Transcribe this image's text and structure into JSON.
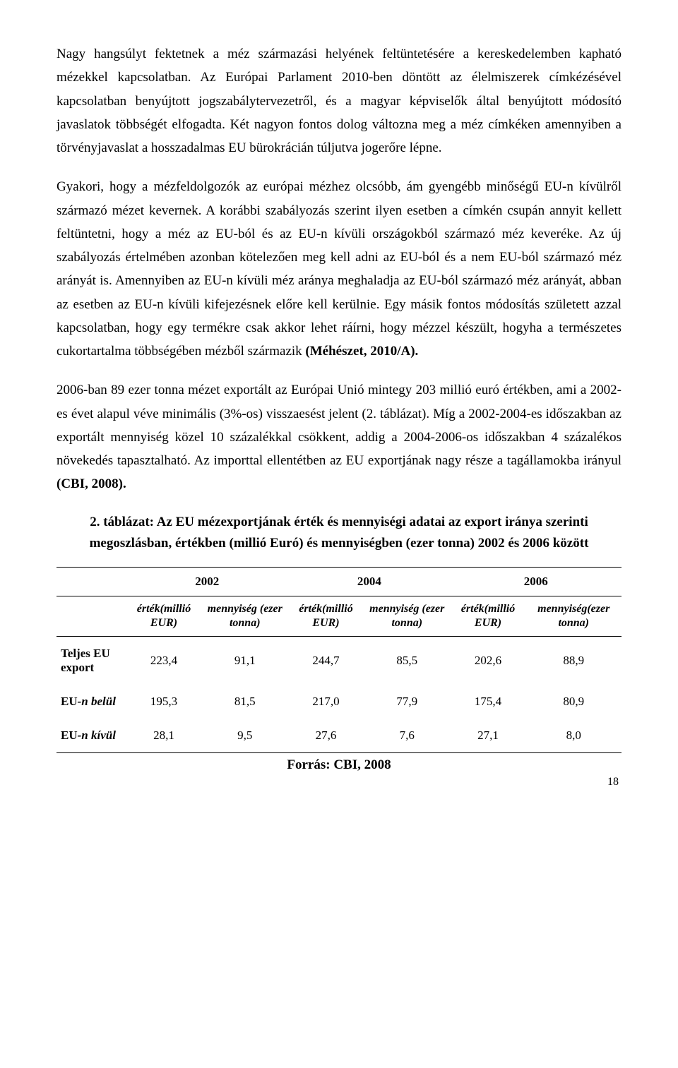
{
  "paragraphs": {
    "p1a": "Nagy hangsúlyt fektetnek a méz származási helyének feltüntetésére a kereskedelemben kapható mézekkel kapcsolatban. Az Európai Parlament 2010-ben döntött az élelmiszerek címkézésével kapcsolatban benyújtott jogszabálytervezetről, és a magyar képviselők által benyújtott módosító javaslatok többségét elfogadta. Két nagyon fontos dolog változna meg a méz címkéken amennyiben a törvényjavaslat a hosszadalmas EU bürokrácián túljutva jogerőre lépne.",
    "p2a": "Gyakori, hogy a mézfeldolgozók az európai mézhez olcsóbb, ám gyengébb minőségű EU-n kívülről származó mézet kevernek. A korábbi szabályozás szerint ilyen esetben a címkén csupán annyit kellett feltüntetni, hogy a méz az EU-ból és az EU-n kívüli országokból származó méz keveréke. Az új szabályozás értelmében azonban kötelezően meg kell adni az EU-ból és a nem EU-ból származó méz arányát is. Amennyiben az EU-n kívüli méz aránya meghaladja az EU-ból származó méz arányát, abban az esetben az EU-n kívüli kifejezésnek előre kell kerülnie. Egy másik fontos módosítás született azzal kapcsolatban, hogy egy termékre csak akkor lehet ráírni, hogy mézzel készült, hogyha a természetes cukortartalma többségében mézből származik ",
    "p2b": "(Méhészet, 2010/A).",
    "p3a": "2006-ban 89 ezer tonna mézet exportált az Európai Unió mintegy 203 millió euró értékben, ami a 2002-es évet alapul véve minimális (3%-os) visszaesést jelent (2. táblázat). Míg a 2002-2004-es időszakban az exportált mennyiség közel 10 százalékkal csökkent, addig a 2004-2006-os időszakban 4 százalékos növekedés tapasztalható. Az importtal ellentétben az EU exportjának nagy része a tagállamokba irányul ",
    "p3b": "(CBI, 2008)."
  },
  "tableTitle": "2. táblázat: Az EU mézexportjának érték és mennyiségi adatai az export iránya szerinti megoszlásban, értékben (millió Euró) és mennyiségben (ezer tonna) 2002 és 2006 között",
  "table": {
    "years": [
      "2002",
      "2004",
      "2006"
    ],
    "subheaders": {
      "value": "érték(millió EUR)",
      "qty": "mennyiség (ezer tonna)",
      "qtyLast": "mennyiség(ezer tonna)"
    },
    "rows": [
      {
        "label": "Teljes EU export",
        "labelPlain": true,
        "cells": [
          "223,4",
          "91,1",
          "244,7",
          "85,5",
          "202,6",
          "88,9"
        ]
      },
      {
        "label": "EU-n belül",
        "labelPlain": false,
        "cells": [
          "195,3",
          "81,5",
          "217,0",
          "77,9",
          "175,4",
          "80,9"
        ]
      },
      {
        "label": "EU-n kívül",
        "labelPlain": false,
        "cells": [
          "28,1",
          "9,5",
          "27,6",
          "7,6",
          "27,1",
          "8,0"
        ]
      }
    ]
  },
  "source": "Forrás: CBI, 2008",
  "pageNumber": "18"
}
